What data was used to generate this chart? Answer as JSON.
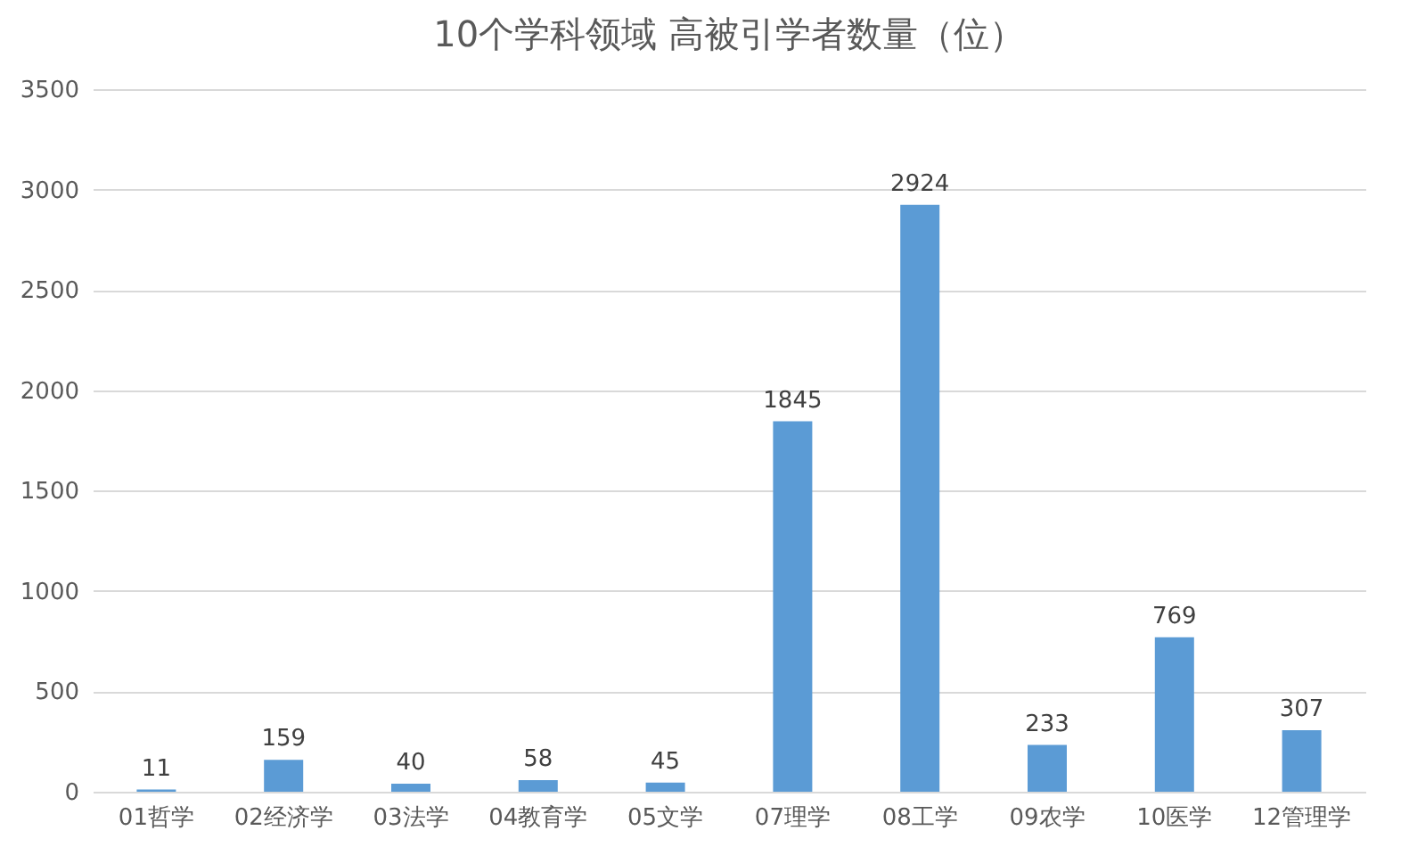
{
  "chart_data": {
    "type": "bar",
    "title": "10个学科领域 高被引学者数量（位）",
    "categories": [
      "01哲学",
      "02经济学",
      "03法学",
      "04教育学",
      "05文学",
      "07理学",
      "08工学",
      "09农学",
      "10医学",
      "12管理学"
    ],
    "values": [
      11,
      159,
      40,
      58,
      45,
      1845,
      2924,
      233,
      769,
      307
    ],
    "color": "#5b9bd5",
    "ylim": [
      0,
      3500
    ],
    "yticks": [
      0,
      500,
      1000,
      1500,
      2000,
      2500,
      3000,
      3500
    ],
    "grid": "y",
    "data_labels": true
  }
}
